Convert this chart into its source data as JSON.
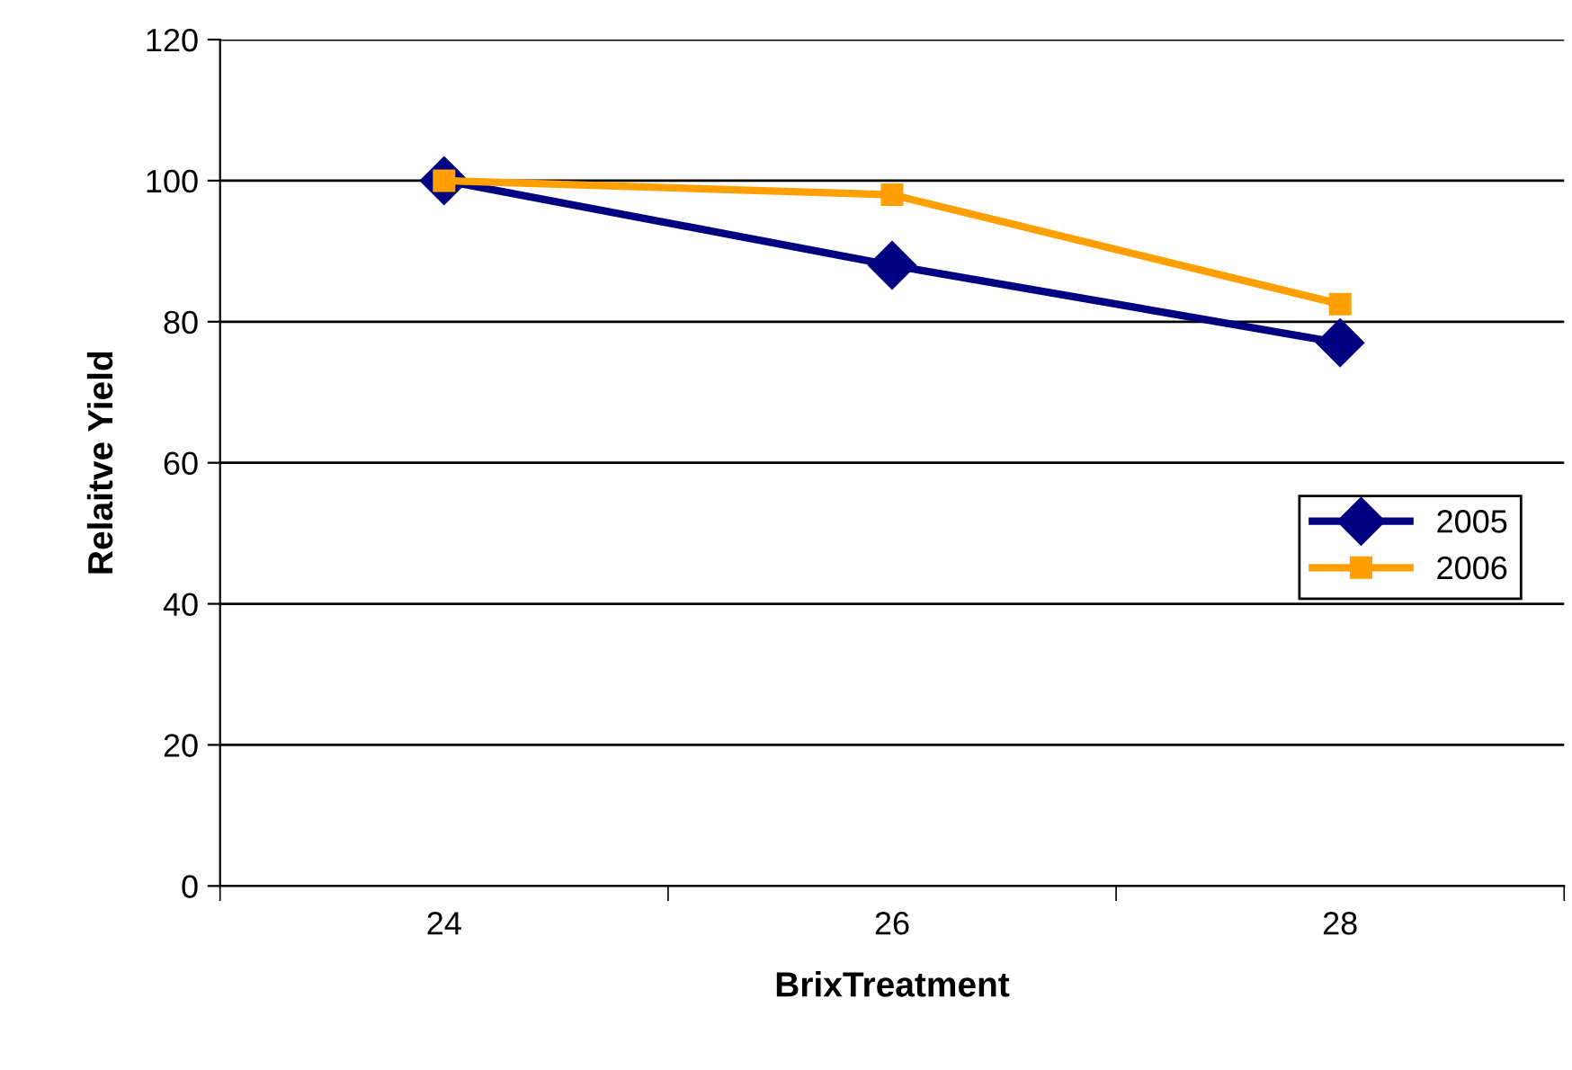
{
  "chart_data": {
    "type": "line",
    "xlabel": "BrixTreatment",
    "ylabel": "Relaitve Yield",
    "categories": [
      "24",
      "26",
      "28"
    ],
    "series": [
      {
        "name": "2005",
        "color": "#000080",
        "values": [
          100,
          88,
          77
        ],
        "marker": "diamond"
      },
      {
        "name": "2006",
        "color": "#ffa000",
        "values": [
          100,
          98,
          82.5
        ],
        "marker": "square"
      }
    ],
    "ylim": [
      0,
      120
    ],
    "yticks": [
      0,
      20,
      40,
      60,
      80,
      100,
      120
    ],
    "grid": "y",
    "legend": "right",
    "line_style": "solid"
  }
}
